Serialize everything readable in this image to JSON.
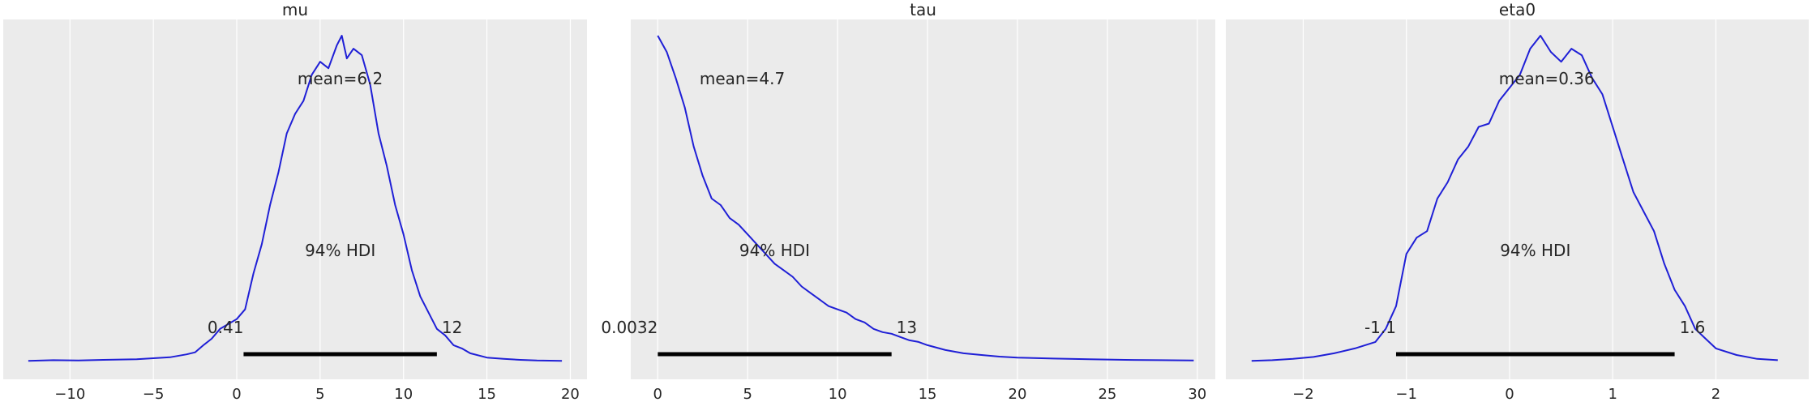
{
  "chart_data": [
    {
      "type": "line",
      "title": "mu",
      "xlim": [
        -14,
        21
      ],
      "ticks": [
        -10,
        -5,
        0,
        5,
        10,
        15,
        20
      ],
      "tick_labels": [
        "−10",
        "−5",
        "0",
        "5",
        "10",
        "15",
        "20"
      ],
      "grid": true,
      "x": [
        -12.5,
        -11,
        -9.5,
        -8,
        -7,
        -6,
        -5,
        -4,
        -3,
        -2.5,
        -2,
        -1.5,
        -1,
        -0.5,
        0,
        0.5,
        1,
        1.5,
        2,
        2.5,
        3,
        3.5,
        4,
        4.5,
        5,
        5.5,
        6,
        6.3,
        6.6,
        7,
        7.5,
        8,
        8.5,
        9,
        9.5,
        10,
        10.5,
        11,
        11.5,
        12,
        12.5,
        13,
        13.5,
        14,
        15,
        16,
        17,
        18,
        19.5
      ],
      "density": [
        0.002,
        0.004,
        0.003,
        0.005,
        0.006,
        0.007,
        0.01,
        0.013,
        0.022,
        0.028,
        0.05,
        0.07,
        0.1,
        0.115,
        0.13,
        0.16,
        0.27,
        0.36,
        0.48,
        0.58,
        0.7,
        0.76,
        0.8,
        0.88,
        0.92,
        0.9,
        0.97,
        1.0,
        0.93,
        0.96,
        0.94,
        0.85,
        0.7,
        0.6,
        0.48,
        0.39,
        0.28,
        0.2,
        0.15,
        0.1,
        0.08,
        0.05,
        0.04,
        0.025,
        0.012,
        0.008,
        0.005,
        0.003,
        0.002
      ],
      "mean_label": "mean=6.2",
      "mean_value": 6.2,
      "hdi_label": "94% HDI",
      "hdi_low": 0.41,
      "hdi_high": 12,
      "hdi_low_label": "0.41",
      "hdi_high_label": "12",
      "line_color": "#1f1fd6"
    },
    {
      "type": "line",
      "title": "tau",
      "xlim": [
        -1.5,
        31
      ],
      "ticks": [
        0,
        5,
        10,
        15,
        20,
        25,
        30
      ],
      "tick_labels": [
        "0",
        "5",
        "10",
        "15",
        "20",
        "25",
        "30"
      ],
      "grid": true,
      "x": [
        0,
        0.5,
        1,
        1.5,
        2,
        2.5,
        3,
        3.5,
        4,
        4.5,
        5,
        5.5,
        6,
        6.5,
        7,
        7.5,
        8,
        8.5,
        9,
        9.5,
        10,
        10.5,
        11,
        11.5,
        12,
        12.5,
        13,
        13.5,
        14,
        14.5,
        15,
        16,
        17,
        18,
        19,
        20,
        22,
        24,
        26,
        28,
        29.8
      ],
      "density": [
        1.0,
        0.95,
        0.87,
        0.78,
        0.66,
        0.57,
        0.5,
        0.48,
        0.44,
        0.42,
        0.39,
        0.36,
        0.33,
        0.3,
        0.28,
        0.26,
        0.23,
        0.21,
        0.19,
        0.17,
        0.16,
        0.15,
        0.13,
        0.12,
        0.1,
        0.09,
        0.085,
        0.075,
        0.065,
        0.06,
        0.05,
        0.035,
        0.025,
        0.02,
        0.015,
        0.012,
        0.009,
        0.007,
        0.005,
        0.004,
        0.003
      ],
      "mean_label": "mean=4.7",
      "mean_value": 4.7,
      "hdi_label": "94% HDI",
      "hdi_low": 0.0032,
      "hdi_high": 13,
      "hdi_low_label": "0.0032",
      "hdi_high_label": "13",
      "line_color": "#1f1fd6"
    },
    {
      "type": "line",
      "title": "eta0",
      "xlim": [
        -2.75,
        2.9
      ],
      "ticks": [
        -2,
        -1,
        0,
        1,
        2
      ],
      "tick_labels": [
        "−2",
        "−1",
        "0",
        "1",
        "2"
      ],
      "grid": true,
      "x": [
        -2.5,
        -2.3,
        -2.1,
        -1.9,
        -1.7,
        -1.5,
        -1.3,
        -1.2,
        -1.1,
        -1.0,
        -0.9,
        -0.8,
        -0.7,
        -0.6,
        -0.5,
        -0.4,
        -0.3,
        -0.2,
        -0.1,
        0,
        0.1,
        0.2,
        0.3,
        0.4,
        0.5,
        0.6,
        0.7,
        0.8,
        0.9,
        1.0,
        1.1,
        1.2,
        1.3,
        1.4,
        1.5,
        1.6,
        1.7,
        1.8,
        1.9,
        2.0,
        2.2,
        2.4,
        2.6
      ],
      "density": [
        0.002,
        0.004,
        0.008,
        0.014,
        0.025,
        0.04,
        0.06,
        0.1,
        0.17,
        0.33,
        0.38,
        0.4,
        0.5,
        0.55,
        0.62,
        0.66,
        0.72,
        0.73,
        0.8,
        0.84,
        0.88,
        0.96,
        1.0,
        0.95,
        0.92,
        0.96,
        0.94,
        0.87,
        0.82,
        0.72,
        0.62,
        0.52,
        0.46,
        0.4,
        0.3,
        0.22,
        0.17,
        0.1,
        0.07,
        0.04,
        0.02,
        0.008,
        0.004
      ],
      "mean_label": "mean=0.36",
      "mean_value": 0.36,
      "hdi_label": "94% HDI",
      "hdi_low": -1.1,
      "hdi_high": 1.6,
      "hdi_low_label": "-1.1",
      "hdi_high_label": "1.6",
      "line_color": "#1f1fd6"
    }
  ],
  "colors": {
    "plot_background": "#ebebeb",
    "grid": "#ffffff",
    "hdi_bar": "#000000",
    "text": "#262626"
  }
}
